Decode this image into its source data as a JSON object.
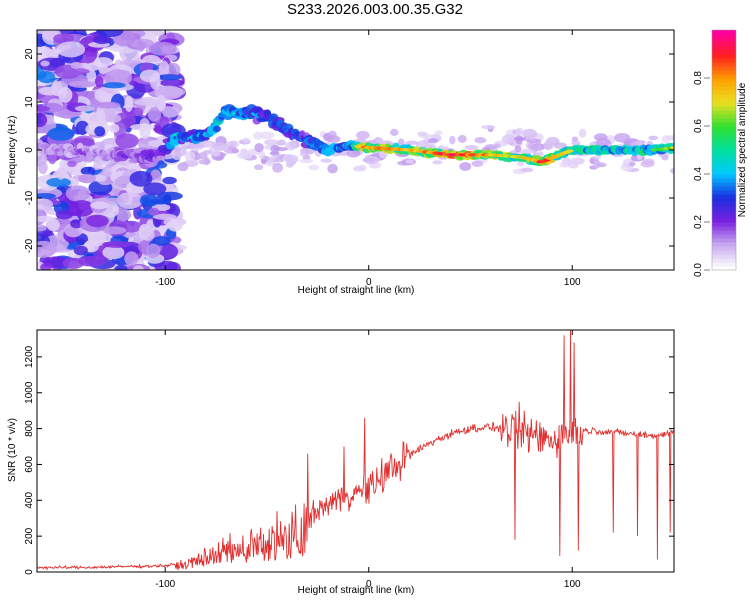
{
  "title": "S233.2026.003.00.35.G32",
  "chart_data": [
    {
      "type": "heatmap",
      "title": "S233.2026.003.00.35.G32",
      "xlabel": "Height of straight line (km)",
      "ylabel": "Frequency (Hz)",
      "xlim": [
        -163,
        150
      ],
      "ylim": [
        -25,
        25
      ],
      "xticks": [
        -100,
        0,
        100
      ],
      "yticks": [
        -20,
        -10,
        0,
        10,
        20
      ],
      "colorbar": {
        "label": "Normalized spectral amplitude",
        "range": [
          0,
          1
        ],
        "ticks": [
          0.0,
          0.2,
          0.4,
          0.6,
          0.8
        ],
        "tick_labels": [
          "0.0",
          "0.2",
          "0.4",
          "0.6",
          "0.8"
        ],
        "colors": [
          "#ffffff",
          "#c8a8f0",
          "#7a20e0",
          "#1a2ee0",
          "#00c8ff",
          "#00e0a0",
          "#30e030",
          "#e8e020",
          "#ffa000",
          "#ff2020",
          "#ff00a0"
        ]
      },
      "ridge": [
        {
          "x": -163,
          "y": 0.5,
          "amp": 0.15
        },
        {
          "x": -125,
          "y": -1,
          "amp": 0.2
        },
        {
          "x": -105,
          "y": -1.5,
          "amp": 0.25
        },
        {
          "x": -95,
          "y": 2.5,
          "amp": 0.45
        },
        {
          "x": -80,
          "y": 3,
          "amp": 0.4
        },
        {
          "x": -70,
          "y": 8,
          "amp": 0.45
        },
        {
          "x": -50,
          "y": 7,
          "amp": 0.35
        },
        {
          "x": -40,
          "y": 4,
          "amp": 0.35
        },
        {
          "x": -30,
          "y": 2,
          "amp": 0.35
        },
        {
          "x": -20,
          "y": 0,
          "amp": 0.4
        },
        {
          "x": -10,
          "y": 1,
          "amp": 0.45
        },
        {
          "x": 0,
          "y": 0.5,
          "amp": 0.75
        },
        {
          "x": 20,
          "y": 0,
          "amp": 0.65
        },
        {
          "x": 40,
          "y": -1,
          "amp": 0.85
        },
        {
          "x": 60,
          "y": -1,
          "amp": 0.7
        },
        {
          "x": 75,
          "y": -1.5,
          "amp": 0.6
        },
        {
          "x": 85,
          "y": -2.5,
          "amp": 0.8
        },
        {
          "x": 100,
          "y": 0,
          "amp": 0.55
        },
        {
          "x": 120,
          "y": 0,
          "amp": 0.5
        },
        {
          "x": 140,
          "y": 0,
          "amp": 0.55
        },
        {
          "x": 150,
          "y": 0.5,
          "amp": 0.6
        }
      ]
    },
    {
      "type": "line",
      "xlabel": "Height of straight line (km)",
      "ylabel": "SNR (10 * v/v)",
      "xlim": [
        -163,
        150
      ],
      "ylim": [
        0,
        1350
      ],
      "xticks": [
        -100,
        0,
        100
      ],
      "yticks": [
        0,
        200,
        400,
        600,
        800,
        1000,
        1200
      ],
      "line_color": "#e03030",
      "series": [
        {
          "name": "SNR",
          "x": [
            -163,
            -140,
            -120,
            -100,
            -90,
            -80,
            -70,
            -60,
            -50,
            -40,
            -30,
            -20,
            -10,
            0,
            10,
            20,
            30,
            40,
            50,
            60,
            70,
            80,
            90,
            100,
            110,
            120,
            130,
            140,
            150
          ],
          "values": [
            25,
            25,
            30,
            35,
            50,
            100,
            150,
            170,
            200,
            230,
            300,
            380,
            430,
            460,
            570,
            650,
            720,
            770,
            800,
            810,
            790,
            760,
            740,
            780,
            790,
            780,
            770,
            760,
            780
          ]
        }
      ],
      "spikes": [
        {
          "x": -45,
          "y": 340
        },
        {
          "x": -30,
          "y": 660
        },
        {
          "x": -12,
          "y": 700
        },
        {
          "x": -2,
          "y": 860
        },
        {
          "x": 74,
          "y": 950
        },
        {
          "x": 96,
          "y": 1320
        },
        {
          "x": 99,
          "y": 1350
        },
        {
          "x": 101,
          "y": 1280
        }
      ],
      "dips": [
        {
          "x": 72,
          "y": 180
        },
        {
          "x": 94,
          "y": 90
        },
        {
          "x": 103,
          "y": 120
        },
        {
          "x": 120,
          "y": 220
        },
        {
          "x": 132,
          "y": 200
        },
        {
          "x": 142,
          "y": 70
        },
        {
          "x": 148,
          "y": 220
        }
      ]
    }
  ]
}
